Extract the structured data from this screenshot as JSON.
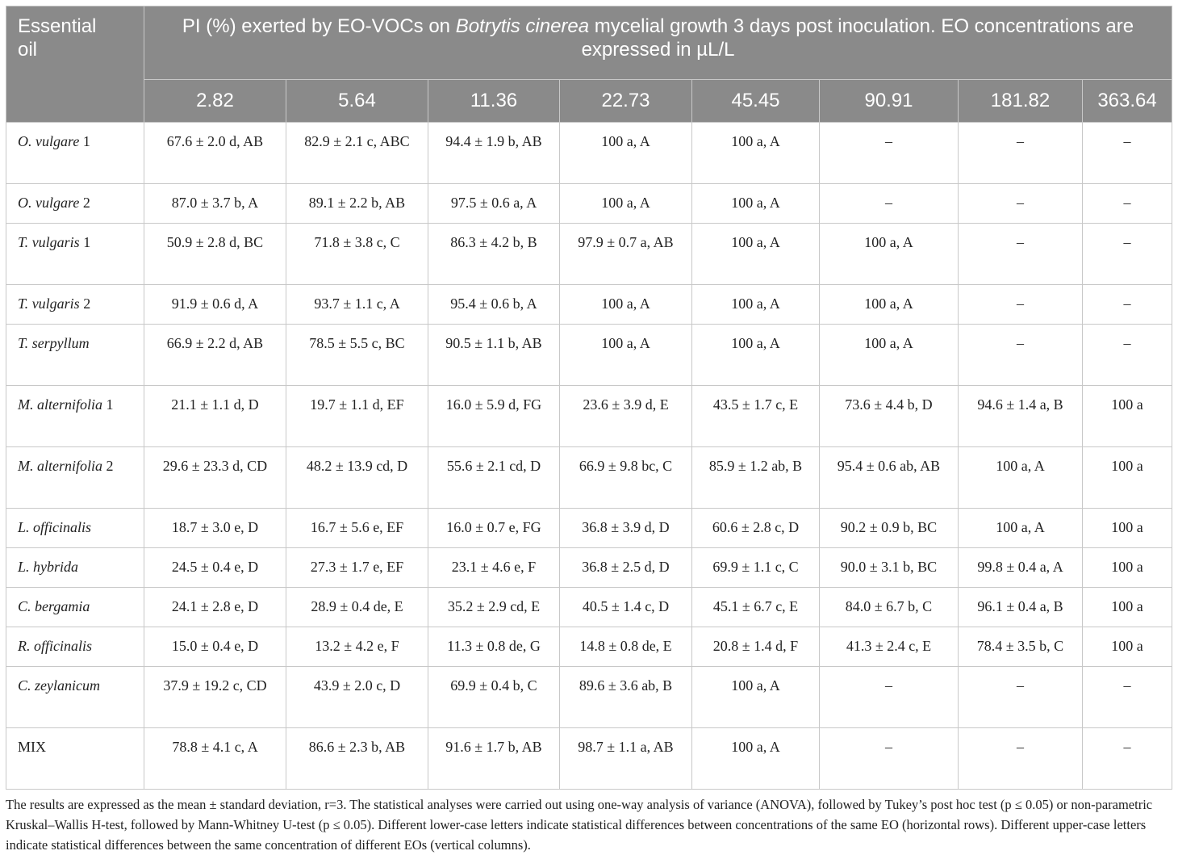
{
  "header": {
    "corner_line1": "Essential",
    "corner_line2": "oil",
    "caption_pre": "PI (%) exerted by EO-VOCs on ",
    "caption_italic": "Botrytis cinerea",
    "caption_post": " mycelial growth 3 days post inoculation. EO concentrations are expressed in µL/L",
    "concentrations": [
      "2.82",
      "5.64",
      "11.36",
      "22.73",
      "45.45",
      "90.91",
      "181.82",
      "363.64"
    ]
  },
  "rows": [
    {
      "genus": "O.",
      "species": "vulgare",
      "suffix": " 1",
      "values": [
        "67.6 ± 2.0 d, AB",
        "82.9 ± 2.1 c, ABC",
        "94.4 ± 1.9 b, AB",
        "100 a, A",
        "100 a, A",
        "–",
        "–",
        "–"
      ]
    },
    {
      "genus": "O.",
      "species": "vulgare",
      "suffix": " 2",
      "values": [
        "87.0 ± 3.7 b, A",
        "89.1 ± 2.2 b, AB",
        "97.5 ± 0.6 a, A",
        "100 a, A",
        "100 a, A",
        "–",
        "–",
        "–"
      ]
    },
    {
      "genus": "T.",
      "species": "vulgaris",
      "suffix": " 1",
      "values": [
        "50.9 ± 2.8 d, BC",
        "71.8 ± 3.8 c, C",
        "86.3 ± 4.2 b, B",
        "97.9 ± 0.7 a, AB",
        "100 a, A",
        "100 a, A",
        "–",
        "–"
      ]
    },
    {
      "genus": "T.",
      "species": "vulgaris",
      "suffix": " 2",
      "values": [
        "91.9 ± 0.6 d, A",
        "93.7 ± 1.1 c, A",
        "95.4 ± 0.6 b, A",
        "100 a, A",
        "100 a, A",
        "100 a, A",
        "–",
        "–"
      ]
    },
    {
      "genus": "T.",
      "species": "serpyllum",
      "suffix": "",
      "values": [
        "66.9 ± 2.2 d, AB",
        "78.5 ± 5.5 c, BC",
        "90.5 ± 1.1 b, AB",
        "100 a, A",
        "100 a, A",
        "100 a, A",
        "–",
        "–"
      ]
    },
    {
      "genus": "M.",
      "species": "alternifolia",
      "suffix": " 1",
      "values": [
        "21.1 ± 1.1 d, D",
        "19.7 ± 1.1 d, EF",
        "16.0 ± 5.9 d, FG",
        "23.6 ± 3.9 d, E",
        "43.5 ± 1.7 c, E",
        "73.6 ± 4.4 b, D",
        "94.6 ± 1.4 a, B",
        "100 a"
      ]
    },
    {
      "genus": "M.",
      "species": "alternifolia",
      "suffix": " 2",
      "values": [
        "29.6 ± 23.3 d, CD",
        "48.2 ± 13.9 cd, D",
        "55.6 ± 2.1 cd, D",
        "66.9 ± 9.8 bc, C",
        "85.9 ± 1.2 ab, B",
        "95.4 ± 0.6 ab, AB",
        "100 a, A",
        "100 a"
      ]
    },
    {
      "genus": "L.",
      "species": "officinalis",
      "suffix": "",
      "values": [
        "18.7 ± 3.0 e, D",
        "16.7 ± 5.6 e, EF",
        "16.0 ± 0.7 e, FG",
        "36.8 ± 3.9 d, D",
        "60.6 ± 2.8 c, D",
        "90.2 ± 0.9 b, BC",
        "100 a, A",
        "100 a"
      ]
    },
    {
      "genus": "L.",
      "species": "hybrida",
      "suffix": "",
      "values": [
        "24.5 ± 0.4 e, D",
        "27.3 ± 1.7 e, EF",
        "23.1 ± 4.6 e, F",
        "36.8 ± 2.5 d, D",
        "69.9 ± 1.1 c, C",
        "90.0 ± 3.1 b, BC",
        "99.8 ± 0.4 a, A",
        "100 a"
      ]
    },
    {
      "genus": "C.",
      "species": "bergamia",
      "suffix": "",
      "values": [
        "24.1 ± 2.8 e, D",
        "28.9 ± 0.4 de, E",
        "35.2 ± 2.9 cd, E",
        "40.5 ± 1.4 c, D",
        "45.1 ± 6.7 c, E",
        "84.0 ± 6.7 b, C",
        "96.1 ± 0.4 a, B",
        "100 a"
      ]
    },
    {
      "genus": "R.",
      "species": "officinalis",
      "suffix": "",
      "values": [
        "15.0 ± 0.4 e, D",
        "13.2 ± 4.2 e, F",
        "11.3 ± 0.8 de, G",
        "14.8 ± 0.8 de, E",
        "20.8 ± 1.4 d, F",
        "41.3 ± 2.4 c, E",
        "78.4 ± 3.5 b, C",
        "100 a"
      ]
    },
    {
      "genus": "C.",
      "species": "zeylanicum",
      "suffix": "",
      "values": [
        "37.9 ± 19.2 c, CD",
        "43.9 ± 2.0 c, D",
        "69.9 ± 0.4 b, C",
        "89.6 ± 3.6 ab, B",
        "100 a, A",
        "–",
        "–",
        "–"
      ]
    },
    {
      "genus": "",
      "species": "",
      "suffix": "MIX",
      "values": [
        "78.8 ± 4.1 c, A",
        "86.6 ± 2.3 b, AB",
        "91.6 ± 1.7 b, AB",
        "98.7 ± 1.1 a, AB",
        "100 a, A",
        "–",
        "–",
        "–"
      ]
    }
  ],
  "footnote": "The results are expressed as the mean ± standard deviation, r=3. The statistical analyses were carried out using one-way analysis of variance (ANOVA), followed by Tukey’s post hoc test (p ≤ 0.05) or non-parametric Kruskal–Wallis H-test, followed by Mann-Whitney U-test (p ≤ 0.05). Different lower-case letters indicate statistical differences between concentrations of the same EO (horizontal rows). Different upper-case letters indicate statistical differences between the same concentration of different EOs (vertical columns)."
}
